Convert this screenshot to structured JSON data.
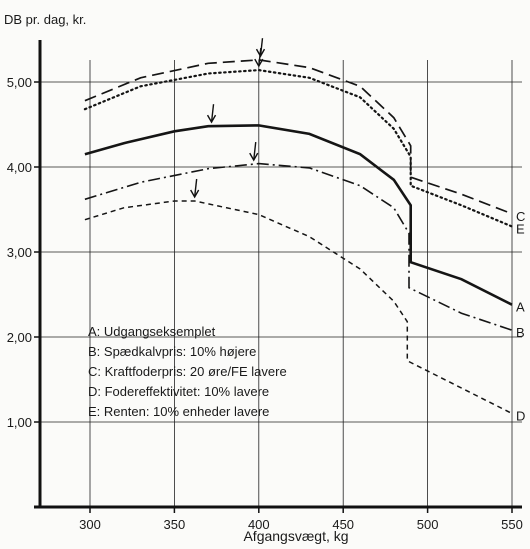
{
  "chart_data": {
    "type": "line",
    "ylabel": "DB pr. dag, kr.",
    "xlabel": "Afgangsvægt, kg",
    "xlim": [
      280,
      550
    ],
    "ylim": [
      0,
      5.6
    ],
    "x_ticks": [
      300,
      350,
      400,
      450,
      500,
      550
    ],
    "y_ticks": [
      1.0,
      2.0,
      3.0,
      4.0,
      5.0
    ],
    "y_tick_labels": [
      "1,00",
      "2,00",
      "3,00",
      "4,00",
      "5,00"
    ],
    "grid": "partial",
    "series": [
      {
        "name": "A",
        "style": "solid",
        "points": [
          [
            297,
            4.15
          ],
          [
            320,
            4.28
          ],
          [
            350,
            4.42
          ],
          [
            370,
            4.48
          ],
          [
            400,
            4.49
          ],
          [
            430,
            4.39
          ],
          [
            460,
            4.15
          ],
          [
            480,
            3.85
          ],
          [
            490,
            3.55
          ],
          [
            490,
            2.88
          ],
          [
            520,
            2.68
          ],
          [
            550,
            2.38
          ]
        ],
        "optimum_x": 372
      },
      {
        "name": "B",
        "style": "dashdot",
        "points": [
          [
            297,
            3.62
          ],
          [
            330,
            3.82
          ],
          [
            370,
            3.98
          ],
          [
            400,
            4.04
          ],
          [
            430,
            3.99
          ],
          [
            460,
            3.78
          ],
          [
            480,
            3.52
          ],
          [
            489,
            3.22
          ],
          [
            489,
            2.58
          ],
          [
            520,
            2.28
          ],
          [
            550,
            2.08
          ]
        ],
        "optimum_x": 397
      },
      {
        "name": "C",
        "style": "longdash",
        "points": [
          [
            297,
            4.78
          ],
          [
            330,
            5.05
          ],
          [
            370,
            5.22
          ],
          [
            400,
            5.26
          ],
          [
            430,
            5.17
          ],
          [
            460,
            4.95
          ],
          [
            480,
            4.58
          ],
          [
            490,
            4.25
          ],
          [
            490,
            3.88
          ],
          [
            520,
            3.68
          ],
          [
            550,
            3.45
          ]
        ],
        "optimum_x": 401
      },
      {
        "name": "D",
        "style": "shortdash",
        "points": [
          [
            297,
            3.38
          ],
          [
            320,
            3.52
          ],
          [
            350,
            3.6
          ],
          [
            362,
            3.6
          ],
          [
            400,
            3.44
          ],
          [
            430,
            3.18
          ],
          [
            460,
            2.8
          ],
          [
            480,
            2.42
          ],
          [
            488,
            2.18
          ],
          [
            488,
            1.72
          ],
          [
            520,
            1.4
          ],
          [
            550,
            1.1
          ]
        ],
        "optimum_x": 362
      },
      {
        "name": "E",
        "style": "dotted",
        "points": [
          [
            297,
            4.68
          ],
          [
            330,
            4.95
          ],
          [
            370,
            5.1
          ],
          [
            400,
            5.14
          ],
          [
            430,
            5.05
          ],
          [
            460,
            4.82
          ],
          [
            480,
            4.45
          ],
          [
            490,
            4.12
          ],
          [
            490,
            3.78
          ],
          [
            520,
            3.55
          ],
          [
            550,
            3.3
          ]
        ],
        "optimum_x": 400
      }
    ],
    "legend": {
      "placement": "lower-left",
      "entries": [
        "A:  Udgangseksemplet",
        "B:  Spædkalvpris: 10% højere",
        "C:  Kraftfoderpris: 20 øre/FE lavere",
        "D:  Fodereffektivitet: 10% lavere",
        "E:  Renten: 10% enheder lavere"
      ]
    }
  }
}
